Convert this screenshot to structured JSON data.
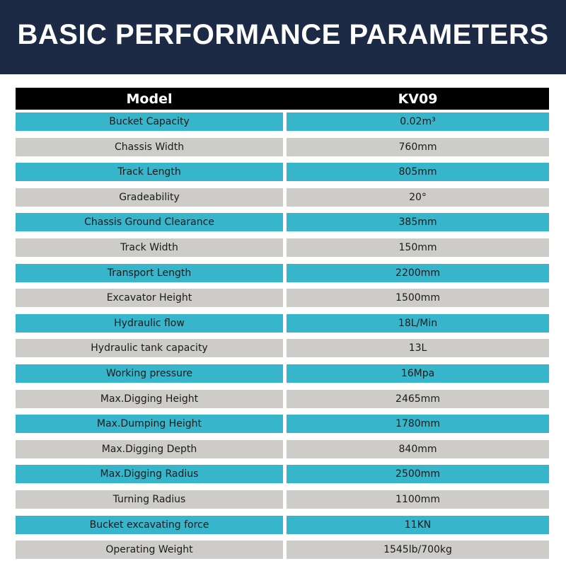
{
  "header": {
    "title": "BASIC PERFORMANCE PARAMETERS"
  },
  "table": {
    "columns": [
      "Model",
      "KV09"
    ],
    "rows": [
      [
        "Bucket Capacity",
        "0.02m³"
      ],
      [
        "Chassis Width",
        "760mm"
      ],
      [
        "Track Length",
        "805mm"
      ],
      [
        "Gradeability",
        "20°"
      ],
      [
        "Chassis Ground Clearance",
        "385mm"
      ],
      [
        "Track Width",
        "150mm"
      ],
      [
        "Transport Length",
        "2200mm"
      ],
      [
        "Excavator Height",
        "1500mm"
      ],
      [
        "Hydraulic flow",
        "18L/Min"
      ],
      [
        "Hydraulic tank capacity",
        "13L"
      ],
      [
        "Working pressure",
        "16Mpa"
      ],
      [
        "Max.Digging Height",
        "2465mm"
      ],
      [
        "Max.Dumping Height",
        "1780mm"
      ],
      [
        "Max.Digging Depth",
        "840mm"
      ],
      [
        "Max.Digging Radius",
        "2500mm"
      ],
      [
        "Turning Radius",
        "1100mm"
      ],
      [
        "Bucket excavating force",
        "11KN"
      ],
      [
        "Operating Weight",
        "1545lb/700kg"
      ]
    ]
  }
}
